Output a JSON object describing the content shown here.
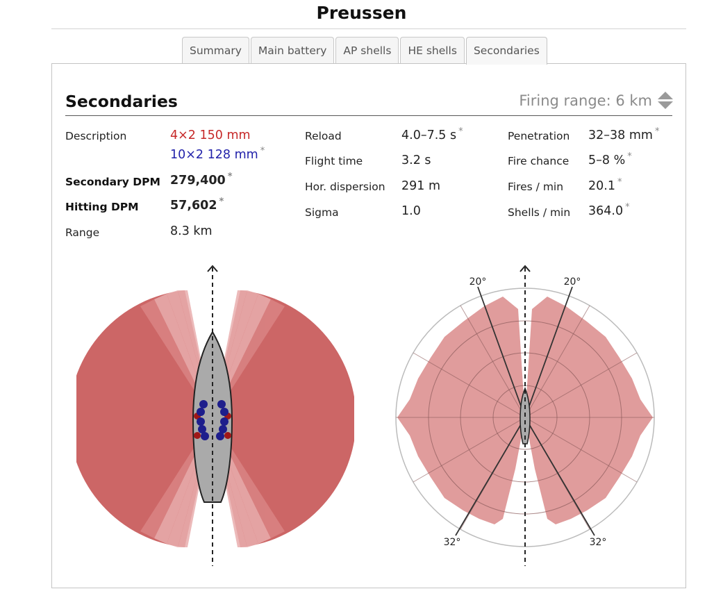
{
  "ship": {
    "name": "Preussen"
  },
  "tabs": [
    {
      "label": "Summary",
      "active": false
    },
    {
      "label": "Main battery",
      "active": false
    },
    {
      "label": "AP shells",
      "active": false
    },
    {
      "label": "HE shells",
      "active": false
    },
    {
      "label": "Secondaries",
      "active": true
    }
  ],
  "section": {
    "title": "Secondaries",
    "firing_range": "Firing range: 6 km",
    "spinner_icon": "up-down-spinner-icon"
  },
  "stats": {
    "col1": {
      "description_label": "Description",
      "description_line1": "4×2 150 mm",
      "description_line2": "10×2 128 mm",
      "secondary_dpm_label": "Secondary DPM",
      "secondary_dpm": "279,400",
      "hitting_dpm_label": "Hitting DPM",
      "hitting_dpm": "57,602",
      "range_label": "Range",
      "range": "8.3 km"
    },
    "col2": {
      "reload_label": "Reload",
      "reload": "4.0–7.5 s",
      "flight_time_label": "Flight time",
      "flight_time": "3.2 s",
      "hor_dispersion_label": "Hor. dispersion",
      "hor_dispersion": "291 m",
      "sigma_label": "Sigma",
      "sigma": "1.0"
    },
    "col3": {
      "penetration_label": "Penetration",
      "penetration": "32–38 mm",
      "fire_chance_label": "Fire chance",
      "fire_chance": "5–8 %",
      "fires_min_label": "Fires / min",
      "fires_min": "20.1",
      "shells_min_label": "Shells / min",
      "shells_min": "364.0"
    },
    "asterisk": "*"
  },
  "diagrams": {
    "polar": {
      "angle_labels": {
        "top_left": "20°",
        "top_right": "20°",
        "bottom_left": "32°",
        "bottom_right": "32°"
      }
    }
  },
  "colors": {
    "arc_red": "#cc6666",
    "arc_light": "#e6a8a8",
    "polar_fill": "#dd9494",
    "hull": "#aaaaaa",
    "turret_red": "#a01818",
    "turret_blue": "#1e1e8c",
    "label_red": "#c62828",
    "label_blue": "#2222aa"
  }
}
